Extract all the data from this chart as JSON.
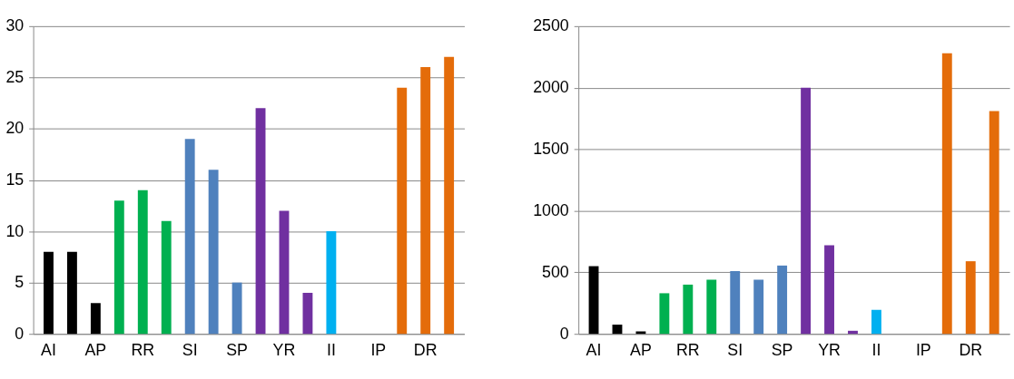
{
  "chart_data": [
    {
      "type": "bar",
      "categories": [
        "AI",
        null,
        "AP",
        null,
        "RR",
        null,
        "SI",
        null,
        "SP",
        null,
        "YR",
        null,
        "II",
        null,
        "IP",
        null,
        "DR",
        null
      ],
      "values": [
        8,
        8,
        3,
        13,
        14,
        11,
        19,
        16,
        5,
        22,
        12,
        4,
        10,
        null,
        null,
        24,
        26,
        27
      ],
      "colors": [
        "#000000",
        "#000000",
        "#000000",
        "#00b050",
        "#00b050",
        "#00b050",
        "#4f81bd",
        "#4f81bd",
        "#4f81bd",
        "#7030a0",
        "#7030a0",
        "#7030a0",
        "#00b0f0",
        "#00b0f0",
        "#e46c0a",
        "#e46c0a",
        "#e46c0a",
        "#e46c0a"
      ],
      "ylim": [
        0,
        30
      ],
      "yticks": [
        0,
        5,
        10,
        15,
        20,
        25,
        30
      ],
      "grid": "y"
    },
    {
      "type": "bar",
      "categories": [
        "AI",
        null,
        "AP",
        null,
        "RR",
        null,
        "SI",
        null,
        "SP",
        null,
        "YR",
        null,
        "II",
        null,
        "IP",
        null,
        "DR",
        null
      ],
      "values": [
        550,
        75,
        20,
        330,
        400,
        440,
        510,
        440,
        555,
        2000,
        720,
        25,
        195,
        null,
        null,
        2280,
        590,
        1810
      ],
      "colors": [
        "#000000",
        "#000000",
        "#000000",
        "#00b050",
        "#00b050",
        "#00b050",
        "#4f81bd",
        "#4f81bd",
        "#4f81bd",
        "#7030a0",
        "#7030a0",
        "#7030a0",
        "#00b0f0",
        "#00b0f0",
        "#e46c0a",
        "#e46c0a",
        "#e46c0a",
        "#e46c0a"
      ],
      "ylim": [
        0,
        2500
      ],
      "yticks": [
        0,
        500,
        {
          "value": 1000,
          "label": "1000"
        },
        {
          "value": 1500,
          "label": "1500"
        },
        {
          "value": 2000,
          "label": "2000"
        },
        {
          "value": 2500,
          "label": "2500"
        }
      ],
      "grid": "y"
    }
  ]
}
